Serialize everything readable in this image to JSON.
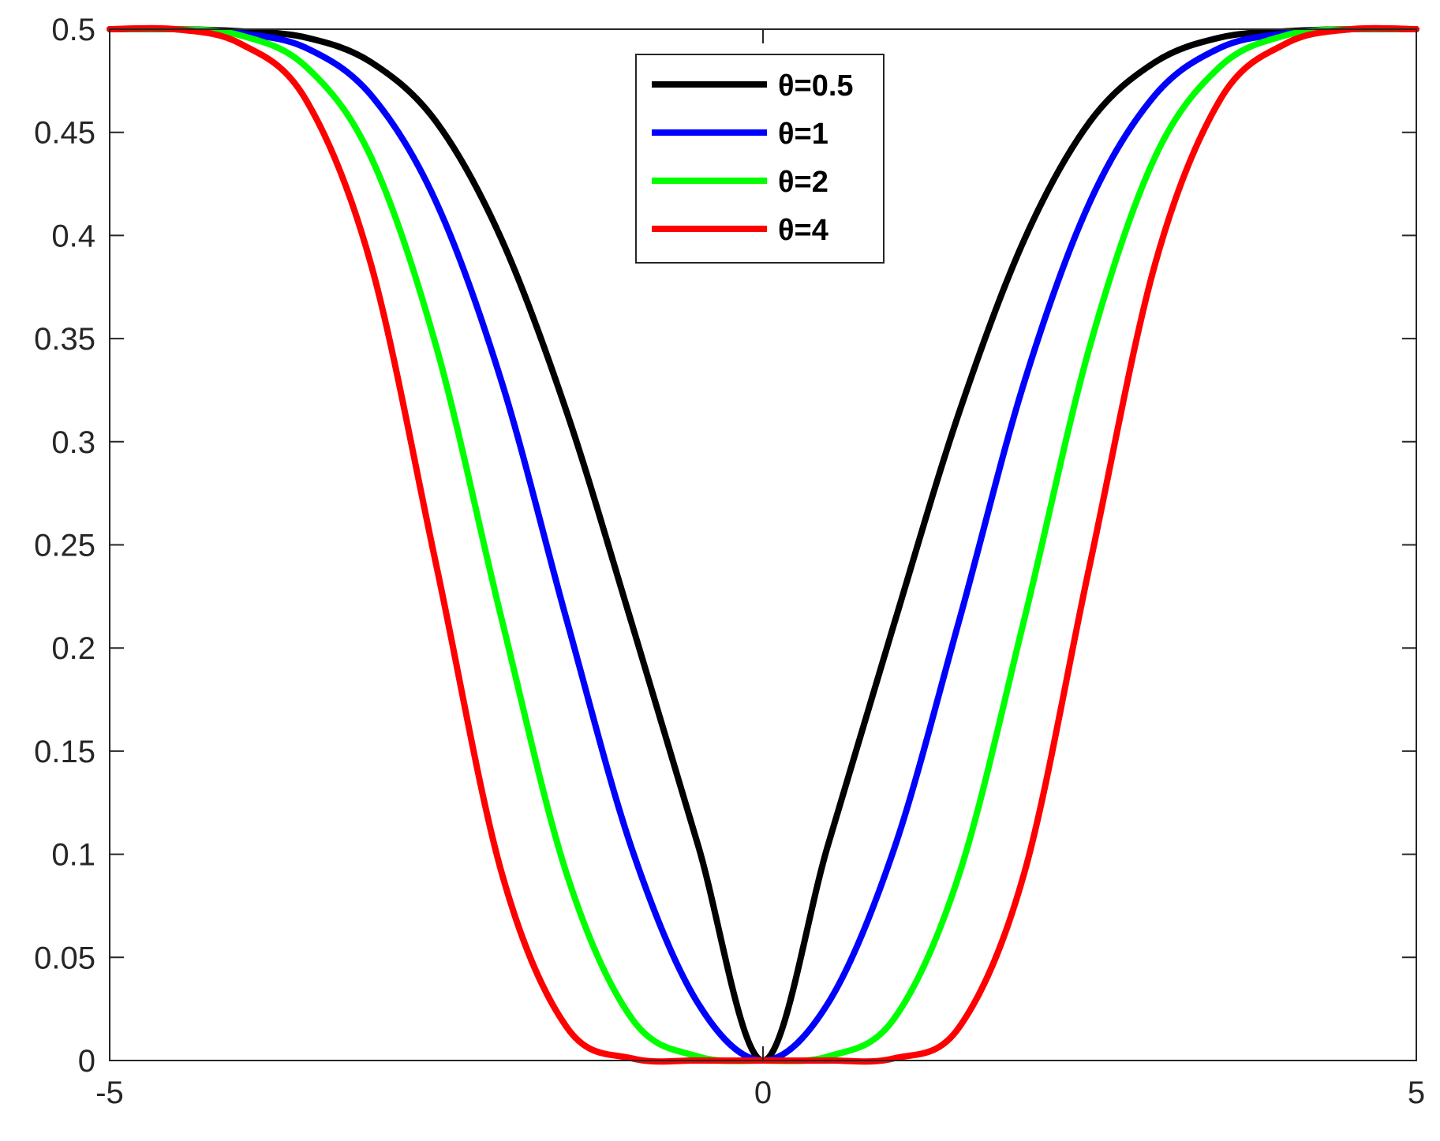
{
  "chart_data": {
    "type": "line",
    "title": "",
    "xlabel": "",
    "ylabel": "",
    "xlim": [
      -5,
      5
    ],
    "ylim": [
      0,
      0.5
    ],
    "x_ticks": [
      -5,
      0,
      5
    ],
    "x_tick_labels": [
      "-5",
      "0",
      "5"
    ],
    "y_ticks": [
      0,
      0.05,
      0.1,
      0.15,
      0.2,
      0.25,
      0.3,
      0.35,
      0.4,
      0.45,
      0.5
    ],
    "y_tick_labels": [
      "0",
      "0.05",
      "0.1",
      "0.15",
      "0.2",
      "0.25",
      "0.3",
      "0.35",
      "0.4",
      "0.45",
      "0.5"
    ],
    "grid": false,
    "legend_position": "top-center",
    "x": [
      -5,
      -4.5,
      -4,
      -3.5,
      -3,
      -2.5,
      -2,
      -1.5,
      -1,
      -0.5,
      0,
      0.5,
      1,
      1.5,
      2,
      2.5,
      3,
      3.5,
      4,
      4.5,
      5
    ],
    "series": [
      {
        "name": "θ=0.5",
        "color": "#000000",
        "values": [
          0.5,
          0.5,
          0.499,
          0.496,
          0.484,
          0.455,
          0.398,
          0.314,
          0.211,
          0.105,
          0.0,
          0.105,
          0.211,
          0.314,
          0.398,
          0.455,
          0.484,
          0.496,
          0.499,
          0.5,
          0.5
        ]
      },
      {
        "name": "θ=1",
        "color": "#0000ff",
        "values": [
          0.5,
          0.5,
          0.498,
          0.491,
          0.468,
          0.416,
          0.329,
          0.213,
          0.102,
          0.028,
          0.0,
          0.028,
          0.102,
          0.213,
          0.329,
          0.416,
          0.468,
          0.491,
          0.498,
          0.5,
          0.5
        ]
      },
      {
        "name": "θ=2",
        "color": "#00ff00",
        "values": [
          0.5,
          0.5,
          0.497,
          0.482,
          0.438,
          0.346,
          0.214,
          0.09,
          0.02,
          0.002,
          0.0,
          0.002,
          0.02,
          0.09,
          0.214,
          0.346,
          0.438,
          0.482,
          0.497,
          0.5,
          0.5
        ]
      },
      {
        "name": "θ=4",
        "color": "#ff0000",
        "values": [
          0.5,
          0.5,
          0.493,
          0.466,
          0.386,
          0.24,
          0.091,
          0.016,
          0.001,
          0.0,
          0.0,
          0.0,
          0.001,
          0.016,
          0.091,
          0.24,
          0.386,
          0.466,
          0.493,
          0.5,
          0.5
        ]
      }
    ]
  }
}
